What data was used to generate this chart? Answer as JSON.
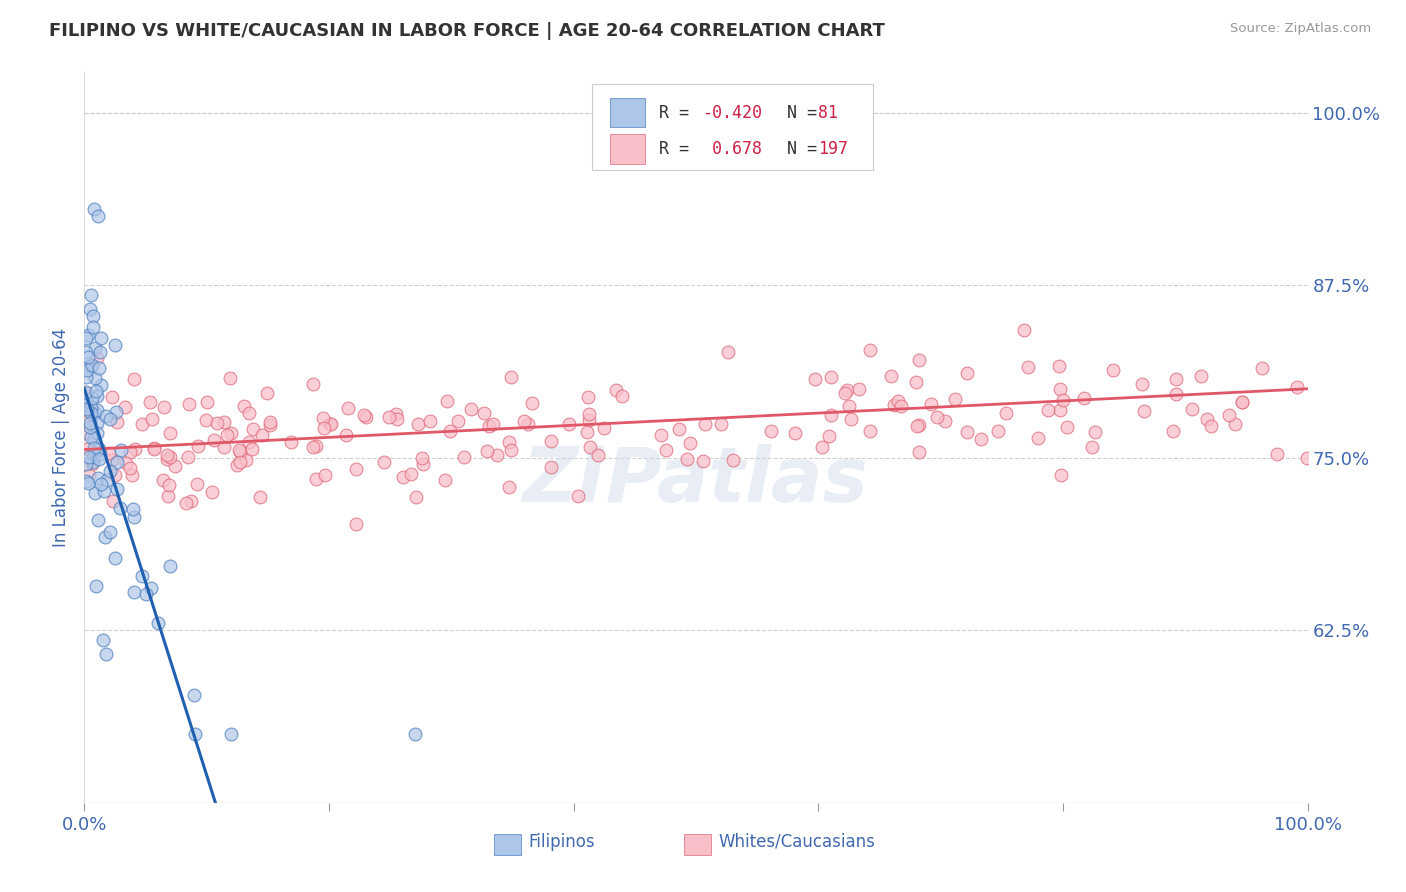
{
  "title": "FILIPINO VS WHITE/CAUCASIAN IN LABOR FORCE | AGE 20-64 CORRELATION CHART",
  "source": "Source: ZipAtlas.com",
  "ylabel": "In Labor Force | Age 20-64",
  "xlim": [
    0.0,
    1.0
  ],
  "ylim": [
    0.5,
    1.03
  ],
  "yticks": [
    0.625,
    0.75,
    0.875,
    1.0
  ],
  "ytick_labels": [
    "62.5%",
    "75.0%",
    "87.5%",
    "100.0%"
  ],
  "xticks": [
    0.0,
    0.2,
    0.4,
    0.6,
    0.8,
    1.0
  ],
  "xtick_labels": [
    "0.0%",
    "",
    "",
    "",
    "",
    "100.0%"
  ],
  "blue_color": "#aec6e8",
  "pink_color": "#f9c0ca",
  "blue_edge_color": "#5080c0",
  "pink_edge_color": "#e06878",
  "blue_line_color": "#2060b0",
  "pink_line_color": "#e05868",
  "text_color": "#4169b0",
  "watermark": "ZIPatlas",
  "background_color": "#ffffff",
  "grid_color": "#cccccc",
  "title_color": "#333333",
  "source_color": "#999999",
  "legend_line1_r": "-0.420",
  "legend_line1_n": "81",
  "legend_line2_r": "0.678",
  "legend_line2_n": "197"
}
